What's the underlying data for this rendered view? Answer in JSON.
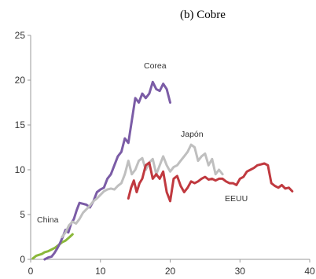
{
  "chart_data": {
    "type": "line",
    "title": "(b) Cobre",
    "xlabel": "",
    "ylabel": "",
    "xlim": [
      0,
      40
    ],
    "ylim": [
      0,
      25
    ],
    "x_ticks": [
      0,
      10,
      20,
      30,
      40
    ],
    "y_ticks": [
      0,
      5,
      10,
      15,
      20,
      25
    ],
    "grid": false,
    "legend": "none",
    "series": [
      {
        "name": "China",
        "color": "#8bb83a",
        "x": [
          0.3,
          0.8,
          1.2,
          1.6,
          2.0,
          2.5,
          3.0,
          3.5,
          4.0,
          4.5,
          5.0,
          5.6,
          6.0
        ],
        "y": [
          0.1,
          0.4,
          0.5,
          0.6,
          0.8,
          0.9,
          1.1,
          1.3,
          1.6,
          1.9,
          2.1,
          2.5,
          2.8
        ]
      },
      {
        "name": "Corea",
        "color": "#7b5ca6",
        "x": [
          2.0,
          2.5,
          3.0,
          3.4,
          3.8,
          4.2,
          4.6,
          5.0,
          5.4,
          5.8,
          6.2,
          6.6,
          7.0,
          7.5,
          8.0,
          8.5,
          9.0,
          9.5,
          10.0,
          10.5,
          11.0,
          11.5,
          12.0,
          12.5,
          13.0,
          13.5,
          14.0,
          14.5,
          15.0,
          15.5,
          16.0,
          16.5,
          17.0,
          17.5,
          18.0,
          18.5,
          19.0,
          19.5,
          20.0
        ],
        "y": [
          0.0,
          0.2,
          0.3,
          0.7,
          1.2,
          1.8,
          2.5,
          3.3,
          3.0,
          4.0,
          4.5,
          5.5,
          6.3,
          6.2,
          6.1,
          5.8,
          6.5,
          7.5,
          7.8,
          8.0,
          9.0,
          9.5,
          10.5,
          11.5,
          12.0,
          13.5,
          13.0,
          15.5,
          18.0,
          17.5,
          18.5,
          18.0,
          18.5,
          19.8,
          19.0,
          18.8,
          19.6,
          19.0,
          17.5
        ]
      },
      {
        "name": "Japón",
        "color": "#bfbfbf",
        "x": [
          4.5,
          5.0,
          5.5,
          6.0,
          6.5,
          7.0,
          7.5,
          8.0,
          8.5,
          9.0,
          9.5,
          10.0,
          10.5,
          11.0,
          11.5,
          12.0,
          12.5,
          13.0,
          13.5,
          14.0,
          14.5,
          15.0,
          15.5,
          16.0,
          16.5,
          17.0,
          17.5,
          18.0,
          18.5,
          19.0,
          19.5,
          20.0,
          20.5,
          21.0,
          21.5,
          22.0,
          22.5,
          23.0,
          23.5,
          24.0,
          24.5,
          25.0,
          25.5,
          26.0,
          26.5,
          27.0,
          27.5
        ],
        "y": [
          2.5,
          3.0,
          3.8,
          4.2,
          4.0,
          4.5,
          5.2,
          5.6,
          6.0,
          6.5,
          6.8,
          7.2,
          7.6,
          7.8,
          7.9,
          7.8,
          8.2,
          8.5,
          9.5,
          11.0,
          9.5,
          10.0,
          11.0,
          11.3,
          10.0,
          10.8,
          11.2,
          9.5,
          10.5,
          11.5,
          10.5,
          9.8,
          10.3,
          10.5,
          11.0,
          11.5,
          12.0,
          12.8,
          12.5,
          11.0,
          11.5,
          11.8,
          10.5,
          11.2,
          9.5,
          10.0,
          9.5
        ]
      },
      {
        "name": "EEUU",
        "color": "#c0393f",
        "x": [
          14.0,
          14.4,
          14.8,
          15.2,
          15.6,
          16.0,
          16.5,
          17.0,
          17.5,
          18.0,
          18.5,
          19.0,
          19.5,
          20.0,
          20.5,
          21.0,
          21.5,
          22.0,
          22.5,
          23.0,
          23.5,
          24.0,
          24.5,
          25.0,
          25.5,
          26.0,
          26.5,
          27.0,
          27.5,
          28.0,
          28.5,
          29.0,
          29.5,
          30.0,
          30.5,
          31.0,
          31.5,
          32.0,
          32.5,
          33.0,
          33.5,
          34.0,
          34.5,
          35.0,
          35.5,
          36.0,
          36.5,
          37.0,
          37.5
        ],
        "y": [
          6.8,
          8.0,
          8.8,
          7.5,
          8.5,
          9.0,
          10.5,
          10.8,
          9.0,
          9.5,
          9.0,
          9.8,
          7.5,
          6.5,
          9.0,
          9.3,
          8.2,
          7.5,
          8.0,
          8.7,
          8.5,
          8.7,
          9.0,
          9.2,
          8.9,
          9.0,
          8.8,
          9.0,
          9.0,
          8.7,
          8.5,
          8.5,
          8.3,
          9.0,
          9.2,
          9.8,
          10.0,
          10.2,
          10.5,
          10.6,
          10.7,
          10.5,
          8.5,
          8.2,
          8.0,
          8.3,
          7.9,
          8.0,
          7.6
        ]
      }
    ],
    "annotations": [
      {
        "text": "China",
        "series": "China"
      },
      {
        "text": "Corea",
        "series": "Corea"
      },
      {
        "text": "Japón",
        "series": "Japón"
      },
      {
        "text": "EEUU",
        "series": "EEUU"
      }
    ]
  }
}
